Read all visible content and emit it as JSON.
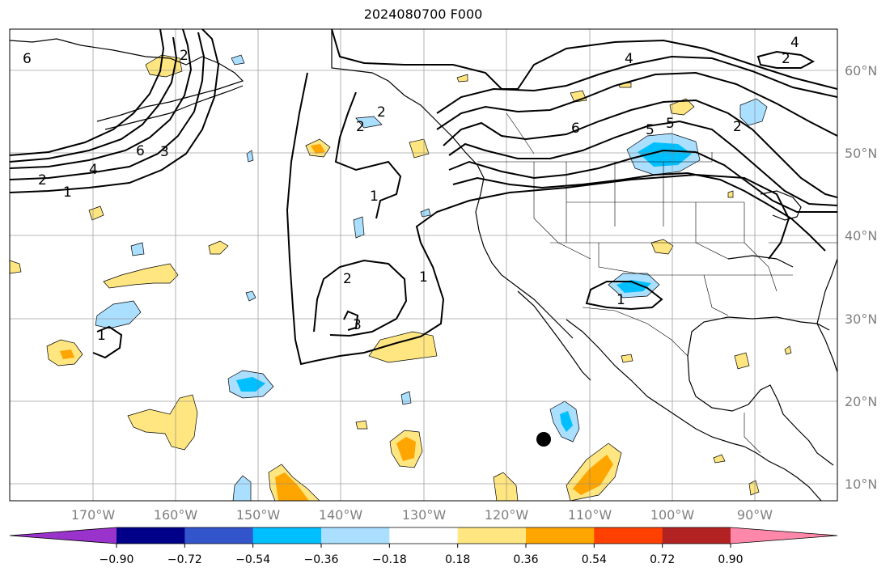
{
  "title": "2024080700 F000",
  "map": {
    "lat_labels": [
      "60°N",
      "50°N",
      "40°N",
      "30°N",
      "20°N",
      "10°N"
    ],
    "lon_labels": [
      "170°W",
      "160°W",
      "150°W",
      "140°W",
      "130°W",
      "120°W",
      "110°W",
      "100°W",
      "90°W"
    ],
    "contour_labels": [
      "6",
      "5",
      "4",
      "3",
      "2",
      "1",
      "2",
      "1",
      "2",
      "3",
      "6",
      "5",
      "4",
      "2",
      "2",
      "6",
      "4",
      "2",
      "1",
      "1",
      "2",
      "1"
    ],
    "land_color": "#ffffff",
    "ocean_color": "#ffffff",
    "grid": true
  },
  "colorbar": {
    "ticks": [
      "−0.90",
      "−0.72",
      "−0.54",
      "−0.36",
      "−0.18",
      "0.18",
      "0.36",
      "0.54",
      "0.72",
      "0.90"
    ],
    "colors": [
      "#9933cc",
      "#000088",
      "#3355cc",
      "#00bfff",
      "#aadfff",
      "#ffffff",
      "#ffe680",
      "#ffa500",
      "#ff4000",
      "#b22222",
      "#ff88aa"
    ]
  }
}
